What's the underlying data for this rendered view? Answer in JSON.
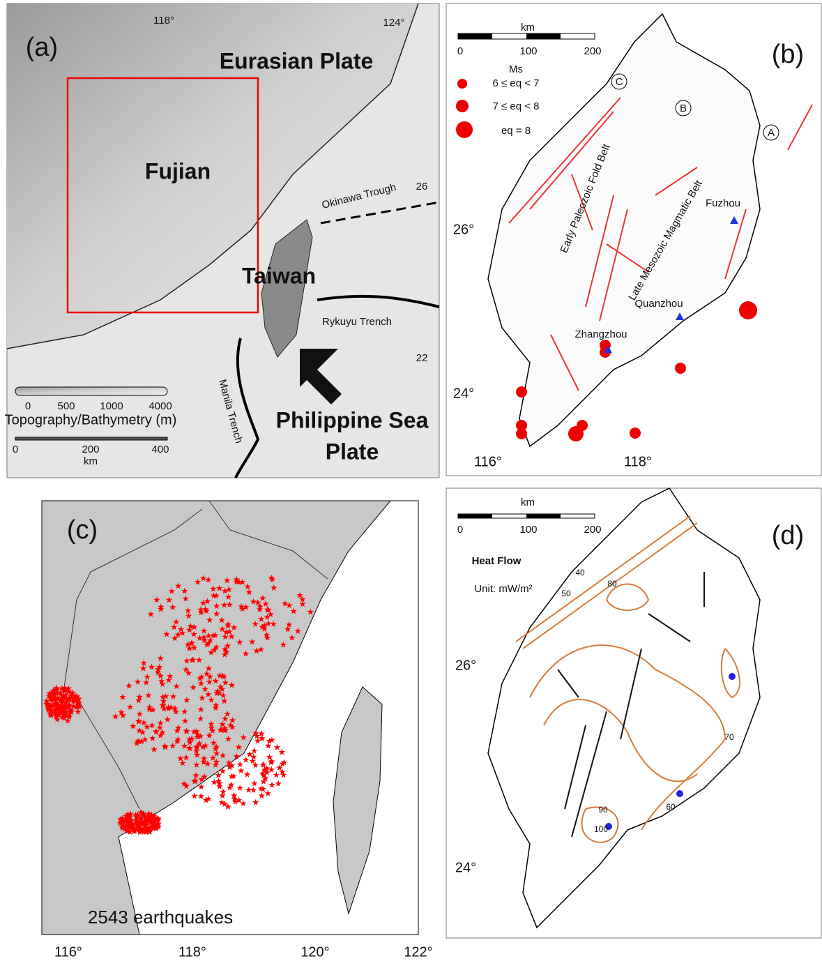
{
  "panel_a": {
    "label": "(a)",
    "lon_labels": [
      "118°",
      "124°"
    ],
    "plate_north": "Eurasian Plate",
    "province": "Fujian",
    "trough": "Okinawa Trough",
    "lat_26": "26",
    "island": "Taiwan",
    "ryukyu": "Rykuyu Trench",
    "lat_22": "22",
    "manila": "Manila Trench",
    "plate_south": [
      "Philippine Sea",
      "Plate"
    ],
    "topo_ticks": [
      "0",
      "500",
      "1000",
      "4000"
    ],
    "topo_title": "Topography/Bathymetry (m)",
    "km_ticks": [
      "0",
      "200",
      "400"
    ],
    "km_unit": "km"
  },
  "panel_b": {
    "label": "(b)",
    "km_unit": "km",
    "km_ticks": [
      "0",
      "100",
      "200"
    ],
    "legend_title": "Ms",
    "legend": [
      "6 ≤ eq < 7",
      "7 ≤ eq < 8",
      "eq = 8"
    ],
    "zones": [
      "C",
      "B",
      "A"
    ],
    "belts": [
      "Early Paleozoic Fold Belt",
      "Late Mesozoic Magmatic Belt"
    ],
    "cities": [
      "Fuzhou",
      "Quanzhou",
      "Zhangzhou"
    ],
    "lat_labels": [
      "26°",
      "24°"
    ],
    "lon_labels": [
      "116°",
      "118°"
    ]
  },
  "panel_c": {
    "label": "(c)",
    "caption": "2543 earthquakes",
    "lon_labels": [
      "116°",
      "118°",
      "120°",
      "122°"
    ]
  },
  "panel_d": {
    "label": "(d)",
    "km_unit": "km",
    "km_ticks": [
      "0",
      "100",
      "200"
    ],
    "title": "Heat Flow",
    "unit": "Unit: mW/m²",
    "lat_labels": [
      "26°",
      "24°"
    ],
    "contour_labels": [
      "40",
      "50",
      "60",
      "70",
      "80",
      "90",
      "100"
    ]
  }
}
